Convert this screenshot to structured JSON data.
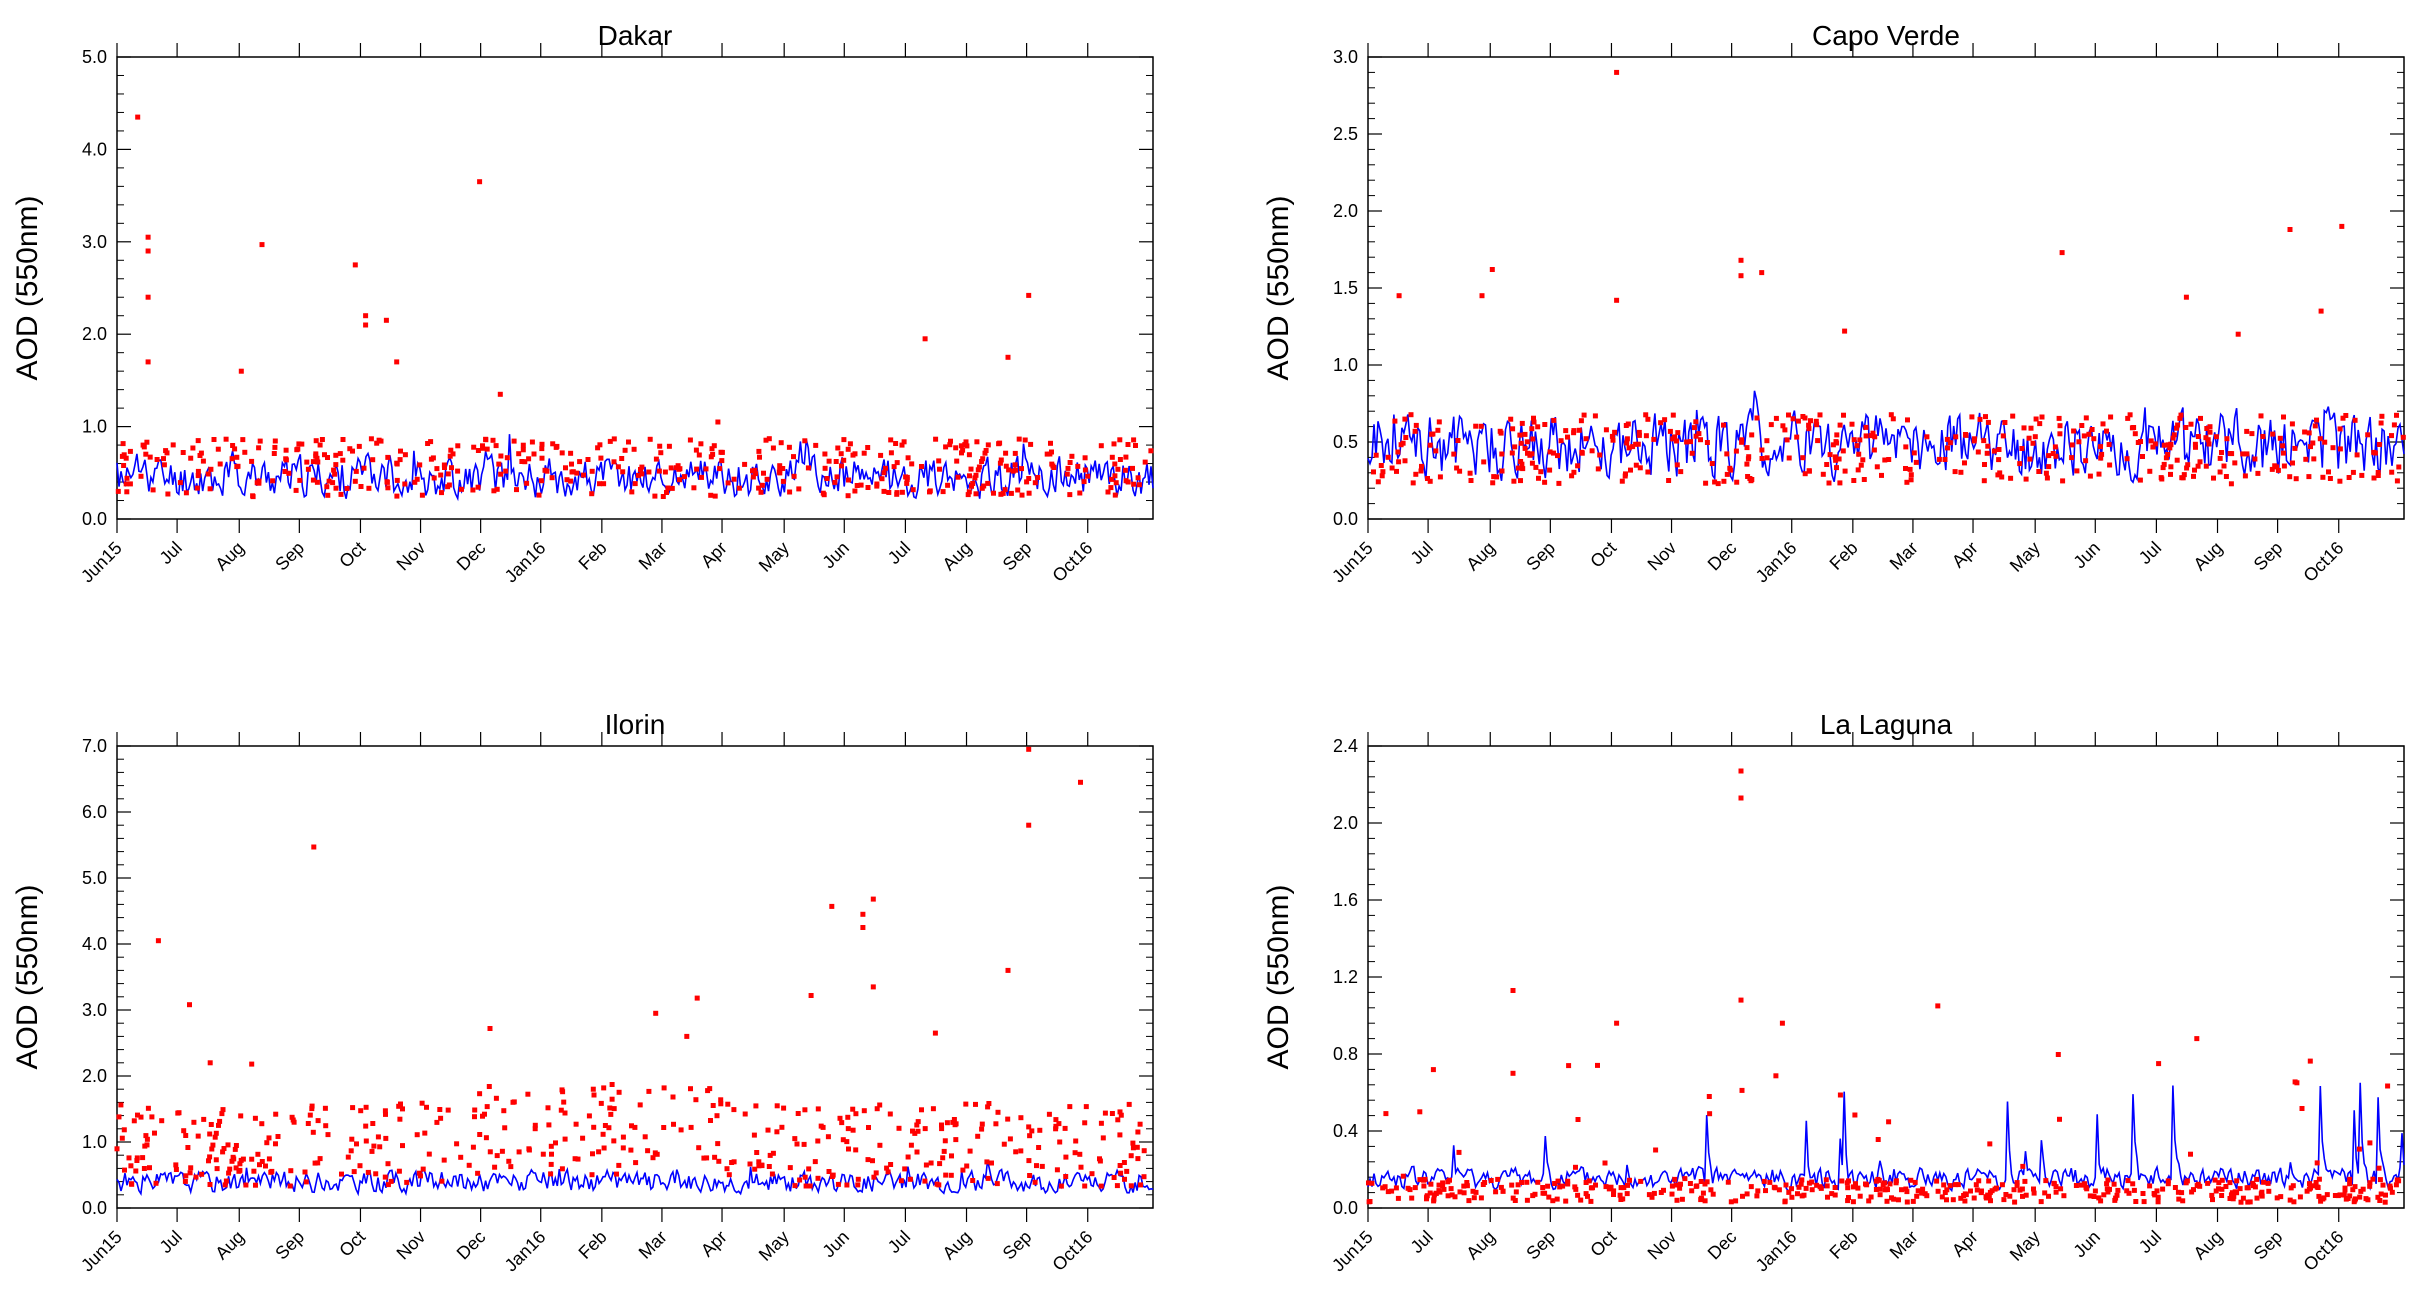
{
  "figure": {
    "months": [
      "Jun15",
      "Jul",
      "Aug",
      "Sep",
      "Oct",
      "Nov",
      "Dec",
      "Jan16",
      "Feb",
      "Mar",
      "Apr",
      "May",
      "Jun",
      "Jul",
      "Aug",
      "Sep",
      "Oct16"
    ],
    "model_color": "#0000ff",
    "obs_color": "#ff0000"
  },
  "chart_data": [
    {
      "type": "scatter",
      "title": "Dakar",
      "ylabel": "AOD (550nm)",
      "xlabel": "",
      "x_range": [
        "2015-06-01",
        "2016-11-30"
      ],
      "ylim": [
        0,
        5.0
      ],
      "yticks": [
        "0.0",
        "1.0",
        "2.0",
        "3.0",
        "4.0",
        "5.0"
      ],
      "series": [
        {
          "kind": "line",
          "base": 0.45,
          "amp": 0.3,
          "seed": 11
        },
        {
          "kind": "points",
          "base": 0.4,
          "amp": 0.35,
          "seed": 12
        },
        {
          "kind": "points-outliers",
          "points": [
            [
              0.02,
              4.35
            ],
            [
              0.03,
              3.05
            ],
            [
              0.03,
              2.9
            ],
            [
              0.03,
              2.4
            ],
            [
              0.03,
              1.7
            ],
            [
              0.14,
              2.97
            ],
            [
              0.12,
              1.6
            ],
            [
              0.23,
              2.75
            ],
            [
              0.24,
              2.2
            ],
            [
              0.24,
              2.1
            ],
            [
              0.26,
              2.15
            ],
            [
              0.27,
              1.7
            ],
            [
              0.35,
              3.65
            ],
            [
              0.37,
              1.35
            ],
            [
              0.58,
              1.05
            ],
            [
              0.78,
              1.95
            ],
            [
              0.88,
              2.42
            ],
            [
              0.86,
              1.75
            ]
          ]
        }
      ]
    },
    {
      "type": "scatter",
      "title": "Capo Verde",
      "ylabel": "AOD (550nm)",
      "xlabel": "",
      "x_range": [
        "2015-06-01",
        "2016-11-30"
      ],
      "ylim": [
        0,
        3.0
      ],
      "yticks": [
        "0.0",
        "0.5",
        "1.0",
        "1.5",
        "2.0",
        "2.5",
        "3.0"
      ],
      "series": [
        {
          "kind": "line",
          "base": 0.48,
          "amp": 0.28,
          "seed": 21
        },
        {
          "kind": "points",
          "base": 0.38,
          "amp": 0.25,
          "seed": 22
        },
        {
          "kind": "points-outliers",
          "points": [
            [
              0.03,
              1.45
            ],
            [
              0.12,
              1.62
            ],
            [
              0.11,
              1.45
            ],
            [
              0.24,
              2.9
            ],
            [
              0.24,
              1.42
            ],
            [
              0.36,
              1.68
            ],
            [
              0.36,
              1.58
            ],
            [
              0.38,
              1.6
            ],
            [
              0.46,
              1.22
            ],
            [
              0.67,
              1.73
            ],
            [
              0.79,
              1.44
            ],
            [
              0.84,
              1.2
            ],
            [
              0.89,
              1.88
            ],
            [
              0.94,
              1.9
            ],
            [
              0.92,
              1.35
            ]
          ]
        }
      ]
    },
    {
      "type": "scatter",
      "title": "Ilorin",
      "ylabel": "AOD (550nm)",
      "xlabel": "",
      "x_range": [
        "2015-06-01",
        "2016-11-30"
      ],
      "ylim": [
        0,
        7.0
      ],
      "yticks": [
        "0.0",
        "1.0",
        "2.0",
        "3.0",
        "4.0",
        "5.0",
        "6.0",
        "7.0"
      ],
      "series": [
        {
          "kind": "line",
          "base": 0.4,
          "amp": 0.22,
          "seed": 31
        },
        {
          "kind": "points",
          "base": 0.55,
          "amp": 0.7,
          "seed": 32
        },
        {
          "kind": "points-outliers",
          "points": [
            [
              0.04,
              4.05
            ],
            [
              0.07,
              3.08
            ],
            [
              0.09,
              2.2
            ],
            [
              0.13,
              2.18
            ],
            [
              0.19,
              5.47
            ],
            [
              0.36,
              2.72
            ],
            [
              0.52,
              2.95
            ],
            [
              0.55,
              2.6
            ],
            [
              0.56,
              3.18
            ],
            [
              0.67,
              3.22
            ],
            [
              0.69,
              4.57
            ],
            [
              0.72,
              4.45
            ],
            [
              0.72,
              4.25
            ],
            [
              0.73,
              4.68
            ],
            [
              0.73,
              3.35
            ],
            [
              0.79,
              2.65
            ],
            [
              0.86,
              3.6
            ],
            [
              0.88,
              6.95
            ],
            [
              0.88,
              5.8
            ],
            [
              0.93,
              6.45
            ],
            [
              0.9,
              1.42
            ]
          ]
        }
      ]
    },
    {
      "type": "scatter",
      "title": "La Laguna",
      "ylabel": "AOD (550nm)",
      "xlabel": "",
      "x_range": [
        "2015-06-01",
        "2016-11-30"
      ],
      "ylim": [
        0,
        2.4
      ],
      "yticks": [
        "0.0",
        "0.4",
        "0.8",
        "1.2",
        "1.6",
        "2.0",
        "2.4"
      ],
      "series": [
        {
          "kind": "line",
          "base": 0.12,
          "amp": 0.35,
          "seed": 41
        },
        {
          "kind": "points",
          "base": 0.08,
          "amp": 0.18,
          "seed": 42
        },
        {
          "kind": "points-outliers",
          "points": [
            [
              0.36,
              2.27
            ],
            [
              0.36,
              2.13
            ],
            [
              0.36,
              1.08
            ],
            [
              0.14,
              1.13
            ],
            [
              0.24,
              0.96
            ],
            [
              0.4,
              0.96
            ],
            [
              0.55,
              1.05
            ],
            [
              0.8,
              0.88
            ],
            [
              0.05,
              0.5
            ],
            [
              0.14,
              0.7
            ]
          ]
        }
      ]
    }
  ]
}
